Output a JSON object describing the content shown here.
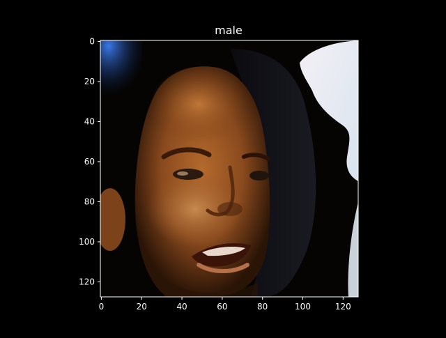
{
  "chart_data": {
    "type": "image",
    "title": "male",
    "xlabel": "",
    "ylabel": "",
    "xlim": [
      -0.5,
      127.5
    ],
    "ylim": [
      127.5,
      -0.5
    ],
    "x_ticks": [
      0,
      20,
      40,
      60,
      80,
      100,
      120
    ],
    "y_ticks": [
      0,
      20,
      40,
      60,
      80,
      100,
      120
    ],
    "image_description": "low-resolution 128x128 face crop of a man",
    "colors": {
      "figure_bg": "#000000",
      "axis": "#ffffff",
      "text": "#ffffff"
    }
  }
}
